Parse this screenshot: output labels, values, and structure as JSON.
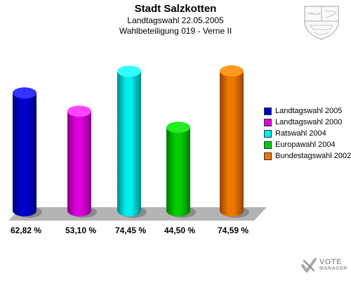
{
  "header": {
    "title": "Stadt Salzkotten",
    "line1": "Landtagswahl 22.05.2005",
    "line2": "Wahlbeteiligung 019 - Verne II"
  },
  "brand": {
    "logo_line1": "VOTE",
    "logo_line2": "MANAGER",
    "crest_icon": "nrw-crest-icon"
  },
  "chart_data": {
    "type": "bar",
    "title": "Stadt Salzkotten",
    "subtitle": "Landtagswahl 22.05.2005 / Wahlbeteiligung 019 - Verne II",
    "xlabel": "",
    "ylabel": "",
    "ylim": [
      0,
      80
    ],
    "grid": false,
    "legend_position": "right",
    "unit": "%",
    "categories": [
      "Landtagswahl 2005",
      "Landtagswahl 2000",
      "Ratswahl 2004",
      "Europawahl 2004",
      "Bundestagswahl 2002"
    ],
    "values": [
      62.82,
      53.1,
      74.45,
      44.5,
      74.59
    ],
    "value_labels": [
      "62,82 %",
      "53,10 %",
      "74,45 %",
      "44,50 %",
      "74,59 %"
    ],
    "colors": [
      "#0000cc",
      "#dd00dd",
      "#00eeee",
      "#00cc00",
      "#ee7700"
    ],
    "top_colors": [
      "#3333ff",
      "#ff44ff",
      "#33ffff",
      "#22ee22",
      "#ff9922"
    ],
    "dark_colors": [
      "#000077",
      "#880088",
      "#008888",
      "#007700",
      "#994400"
    ]
  }
}
